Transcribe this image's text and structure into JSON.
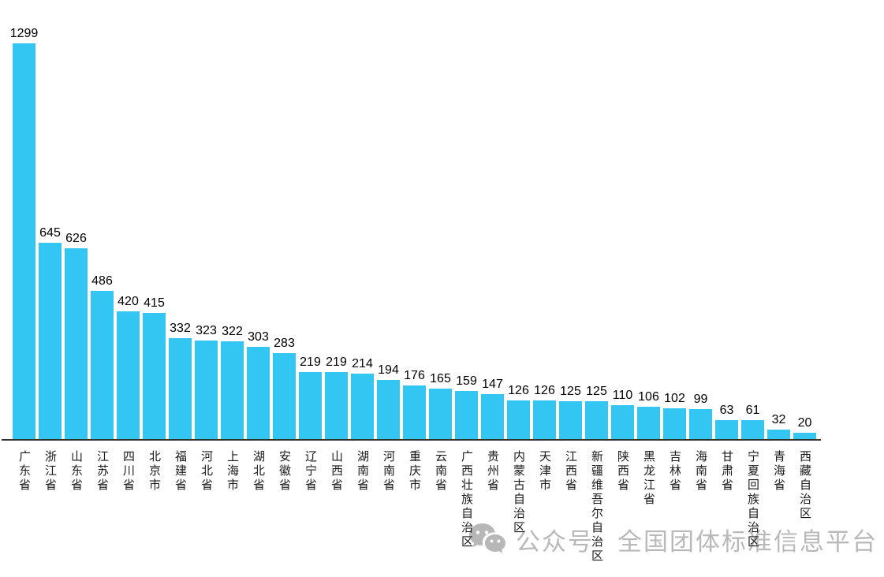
{
  "chart_data": {
    "type": "bar",
    "title": "",
    "xlabel": "",
    "ylabel": "",
    "categories": [
      "广东省",
      "浙江省",
      "山东省",
      "江苏省",
      "四川省",
      "北京市",
      "福建省",
      "河北省",
      "上海市",
      "湖北省",
      "安徽省",
      "辽宁省",
      "山西省",
      "湖南省",
      "河南省",
      "重庆市",
      "云南省",
      "广西壮族自治区",
      "贵州省",
      "内蒙古自治区",
      "天津市",
      "江西省",
      "新疆维吾尔自治区",
      "陕西省",
      "黑龙江省",
      "吉林省",
      "海南省",
      "甘肃省",
      "宁夏回族自治区",
      "青海省",
      "西藏自治区"
    ],
    "values": [
      1299,
      645,
      626,
      486,
      420,
      415,
      332,
      323,
      322,
      303,
      283,
      219,
      219,
      214,
      194,
      176,
      165,
      159,
      147,
      126,
      126,
      125,
      125,
      110,
      106,
      102,
      99,
      63,
      61,
      32,
      20
    ],
    "ylim": [
      0,
      1299
    ],
    "bar_color": "#33C6F3",
    "axis_color": "#333333",
    "grid": false,
    "legend_position": "none",
    "data_labels": true,
    "x_tick_orientation": "vertical-upright"
  },
  "watermark": {
    "icon": "wechat-icon",
    "prefix": "公众号",
    "name": "全国团体标准信息平台",
    "color": "#b9b9b9"
  }
}
